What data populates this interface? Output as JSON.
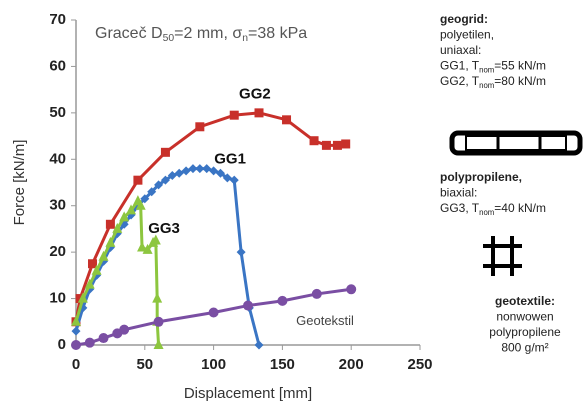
{
  "chart_data": {
    "type": "line",
    "title_parts": [
      {
        "text": "Graceč D"
      },
      {
        "text": "50",
        "sub": true
      },
      {
        "text": "=2 mm, σ"
      },
      {
        "text": "n",
        "sub": true
      },
      {
        "text": "=38 kPa"
      }
    ],
    "x_label": "Displacement [mm]",
    "y_label": "Force [kN/m]",
    "xlim": [
      0,
      250
    ],
    "xticks": [
      0,
      50,
      100,
      150,
      200,
      250
    ],
    "ylim": [
      0,
      70
    ],
    "yticks": [
      0,
      10,
      20,
      30,
      40,
      50,
      60,
      70
    ],
    "series": [
      {
        "name": "GG2",
        "color": "#c8302a",
        "marker": "square",
        "x": [
          0,
          3,
          12,
          25,
          45,
          65,
          90,
          115,
          133,
          153,
          173,
          182,
          190,
          196
        ],
        "values": [
          5,
          10,
          17.5,
          26,
          35.5,
          41.5,
          47,
          49.5,
          50,
          48.5,
          44,
          43,
          43,
          43.3
        ],
        "label_at": [
          130,
          54
        ]
      },
      {
        "name": "GG1",
        "color": "#3a75c4",
        "marker": "diamond",
        "x": [
          0,
          5,
          10,
          15,
          20,
          25,
          30,
          35,
          40,
          45,
          50,
          55,
          60,
          65,
          70,
          75,
          80,
          85,
          90,
          95,
          100,
          105,
          110,
          115,
          120,
          126,
          133
        ],
        "values": [
          3,
          8,
          12,
          15,
          18,
          21,
          24,
          26,
          28,
          30,
          31.5,
          33,
          34.5,
          35.5,
          36.5,
          37,
          37.5,
          38,
          38,
          38,
          37.5,
          37,
          36,
          35.5,
          20,
          8,
          0
        ],
        "label_at": [
          112,
          40
        ]
      },
      {
        "name": "GG3",
        "color": "#8dc63f",
        "marker": "triangle",
        "x": [
          0,
          5,
          10,
          15,
          20,
          25,
          30,
          35,
          40,
          45,
          47,
          48,
          52,
          56,
          58,
          59,
          59,
          60
        ],
        "values": [
          5,
          10,
          13,
          16,
          19,
          22,
          25,
          27.5,
          29,
          31,
          30,
          21,
          20.5,
          22,
          22.5,
          10,
          5,
          0
        ],
        "label_at": [
          64,
          25
        ]
      },
      {
        "name": "Geotekstil",
        "color": "#7a4ea3",
        "marker": "circle",
        "x": [
          0,
          10,
          20,
          30,
          35,
          60,
          100,
          125,
          150,
          175,
          200
        ],
        "values": [
          0,
          0.5,
          1.5,
          2.5,
          3.3,
          5,
          7,
          8.5,
          9.5,
          11,
          12
        ],
        "label_at": [
          181,
          5
        ]
      }
    ],
    "side_notes": [
      {
        "lines": [
          [
            {
              "text": "geogrid:"
            }
          ],
          [
            {
              "text": "polyetilen,"
            }
          ],
          [
            {
              "text": "uniaxal:"
            }
          ],
          [
            {
              "text": "GG1, T"
            },
            {
              "text": "nom",
              "sub": true
            },
            {
              "text": "=55 kN/m"
            }
          ],
          [
            {
              "text": "GG2, T"
            },
            {
              "text": "nom",
              "sub": true
            },
            {
              "text": "=80 kN/m"
            }
          ]
        ]
      },
      {
        "lines": [
          [
            {
              "text": "polypropilene,"
            }
          ],
          [
            {
              "text": "biaxial:"
            }
          ],
          [
            {
              "text": "GG3, T"
            },
            {
              "text": "nom",
              "sub": true
            },
            {
              "text": "=40 kN/m"
            }
          ]
        ]
      },
      {
        "lines": [
          [
            {
              "text": "geotextile:"
            }
          ],
          [
            {
              "text": "nonwowen"
            }
          ],
          [
            {
              "text": "polypropilene"
            }
          ],
          [
            {
              "text": "800 g/m²"
            }
          ]
        ]
      }
    ]
  }
}
